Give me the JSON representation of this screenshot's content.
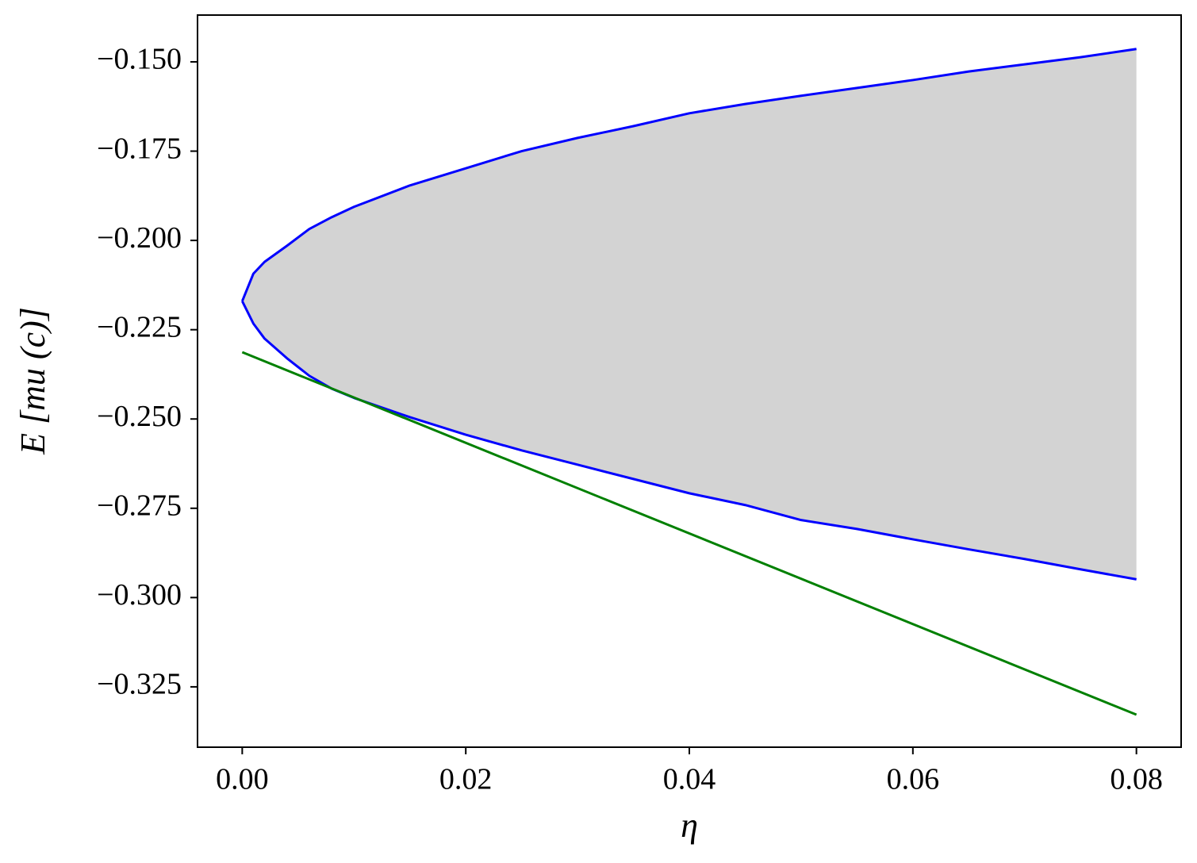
{
  "chart_data": {
    "type": "line",
    "x_label": "η",
    "y_label": "E [mu (c)]",
    "xlim": [
      -0.004,
      0.084
    ],
    "ylim": [
      -0.3419,
      -0.1369
    ],
    "xticks": [
      {
        "value": 0,
        "label": "0.00"
      },
      0.02,
      0.04,
      0.06,
      0.08
    ],
    "yticks": [
      {
        "value": -0.15,
        "label": "−0.150"
      },
      {
        "value": -0.175,
        "label": "−0.175"
      },
      {
        "value": -0.2,
        "label": "−0.200"
      },
      {
        "value": -0.225,
        "label": "−0.225"
      },
      {
        "value": -0.25,
        "label": "−0.250"
      },
      {
        "value": -0.275,
        "label": "−0.275"
      },
      {
        "value": -0.3,
        "label": "−0.300"
      },
      {
        "value": -0.325,
        "label": "−0.325"
      }
    ],
    "fill_color": "#d3d3d3",
    "series": [
      {
        "color": "#0000ff",
        "x": [
          0,
          0.001,
          0.002,
          0.004,
          0.006,
          0.008,
          0.01,
          0.015,
          0.02,
          0.025,
          0.03,
          0.035,
          0.04,
          0.045,
          0.05,
          0.055,
          0.06,
          0.065,
          0.07,
          0.075,
          0.08
        ],
        "values": [
          -0.217,
          -0.2093,
          -0.206,
          -0.2015,
          -0.1968,
          -0.1935,
          -0.1906,
          -0.1846,
          -0.1798,
          -0.175,
          -0.1713,
          -0.168,
          -0.1644,
          -0.1618,
          -0.1595,
          -0.1573,
          -0.1551,
          -0.1527,
          -0.1507,
          -0.1487,
          -0.1464
        ]
      },
      {
        "color": "#0000ff",
        "x": [
          0,
          0.001,
          0.002,
          0.004,
          0.006,
          0.008,
          0.01,
          0.015,
          0.02,
          0.025,
          0.03,
          0.035,
          0.04,
          0.045,
          0.05,
          0.055,
          0.06,
          0.065,
          0.07,
          0.075,
          0.08
        ],
        "values": [
          -0.217,
          -0.2233,
          -0.2275,
          -0.233,
          -0.2379,
          -0.2415,
          -0.2441,
          -0.2495,
          -0.2544,
          -0.2588,
          -0.2628,
          -0.2668,
          -0.2708,
          -0.2741,
          -0.2783,
          -0.2808,
          -0.2837,
          -0.2865,
          -0.2892,
          -0.2921,
          -0.2949
        ]
      },
      {
        "color": "#008000",
        "x": [
          0,
          0.08
        ],
        "values": [
          -0.2313,
          -0.3328
        ]
      }
    ]
  }
}
